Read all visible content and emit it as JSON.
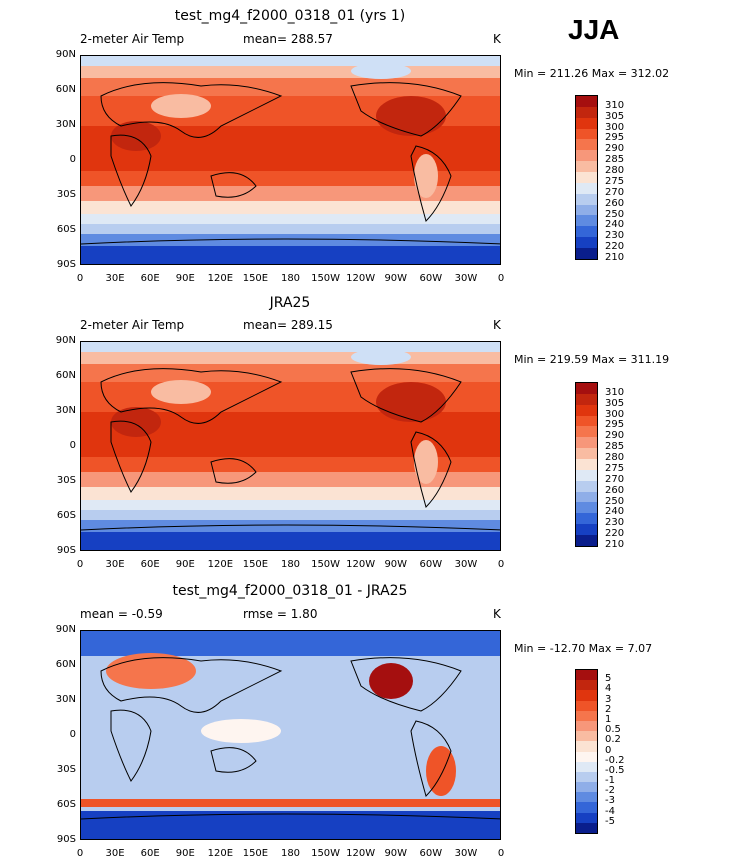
{
  "season": "JJA",
  "panels": [
    {
      "id": "model",
      "title": "test_mg4_f2000_0318_01 (yrs 1)",
      "left_label": "2-meter Air Temp",
      "mid_label": "mean= 288.57",
      "right_label": "K",
      "minmax": "Min = 211.26 Max = 312.02",
      "levels": [
        "310",
        "305",
        "300",
        "295",
        "290",
        "285",
        "280",
        "275",
        "270",
        "260",
        "250",
        "240",
        "230",
        "220",
        "210"
      ],
      "colors": [
        "#a50f0f",
        "#c2260e",
        "#e0350e",
        "#ef5428",
        "#f5754c",
        "#f7977a",
        "#f9bca2",
        "#fbe3d3",
        "#dfe9f5",
        "#b8cdef",
        "#8faee8",
        "#5f8be1",
        "#3466d8",
        "#1640c2",
        "#0a1e8c"
      ]
    },
    {
      "id": "obs",
      "title": "JRA25",
      "left_label": "2-meter Air Temp",
      "mid_label": "mean= 289.15",
      "right_label": "K",
      "minmax": "Min = 219.59 Max = 311.19",
      "levels": [
        "310",
        "305",
        "300",
        "295",
        "290",
        "285",
        "280",
        "275",
        "270",
        "260",
        "250",
        "240",
        "230",
        "220",
        "210"
      ],
      "colors": [
        "#a50f0f",
        "#c2260e",
        "#e0350e",
        "#ef5428",
        "#f5754c",
        "#f7977a",
        "#f9bca2",
        "#fbe3d3",
        "#dfe9f5",
        "#b8cdef",
        "#8faee8",
        "#5f8be1",
        "#3466d8",
        "#1640c2",
        "#0a1e8c"
      ]
    },
    {
      "id": "diff",
      "title": "test_mg4_f2000_0318_01 - JRA25",
      "left_label": "mean =   -0.59",
      "mid_label": "rmse =    1.80",
      "right_label": "K",
      "minmax": "Min = -12.70 Max =    7.07",
      "levels": [
        "5",
        "4",
        "3",
        "2",
        "1",
        "0.5",
        "0.2",
        "0",
        "-0.2",
        "-0.5",
        "-1",
        "-2",
        "-3",
        "-4",
        "-5"
      ],
      "colors": [
        "#a50f0f",
        "#c2260e",
        "#e0350e",
        "#ef5428",
        "#f5754c",
        "#f7977a",
        "#f9bca2",
        "#fbe3d3",
        "#fef5f0",
        "#dfe9f5",
        "#b8cdef",
        "#8faee8",
        "#5f8be1",
        "#3466d8",
        "#1640c2",
        "#0a1e8c"
      ]
    }
  ],
  "lat_ticks": [
    "90N",
    "60N",
    "30N",
    "0",
    "30S",
    "60S",
    "90S"
  ],
  "lon_ticks": [
    "0",
    "30E",
    "60E",
    "90E",
    "120E",
    "150E",
    "180",
    "150W",
    "120W",
    "90W",
    "60W",
    "30W",
    "0"
  ],
  "field_colors": {
    "polar_ice": "#dbe8f8",
    "tropics": "#e0350e",
    "mid_warm": "#f5754c",
    "cold": "#1640c2",
    "diff_neutral": "#b8cdef"
  }
}
